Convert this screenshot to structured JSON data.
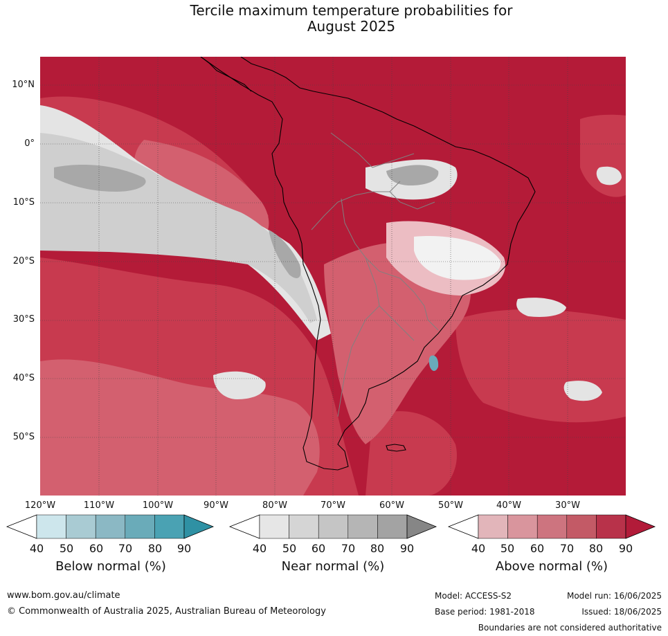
{
  "title": {
    "line1": "Tercile maximum temperature probabilities for",
    "line2": "August 2025"
  },
  "map": {
    "lat_labels": [
      "10°N",
      "0°",
      "10°S",
      "20°S",
      "30°S",
      "40°S",
      "50°S"
    ],
    "lon_labels": [
      "120°W",
      "110°W",
      "100°W",
      "90°W",
      "80°W",
      "70°W",
      "60°W",
      "50°W",
      "40°W",
      "30°W"
    ],
    "colors": {
      "ocean_above_90": "#b41b38",
      "ocean_above_80": "#c83a4f",
      "above_70": "#d3606f",
      "above_60": "#df8d98",
      "above_50": "#ecbdc3",
      "near_50": "#e4e4e4",
      "near_60": "#cfcfcf",
      "near_70": "#a8a8a8",
      "coast": "#000000",
      "border": "#808080"
    }
  },
  "legend": {
    "below": {
      "title": "Below normal (%)",
      "ticks": [
        "40",
        "50",
        "60",
        "70",
        "80",
        "90"
      ],
      "colors": [
        "#cde6ec",
        "#a9cbd3",
        "#8bb8c4",
        "#6aabb9",
        "#4aa2b3",
        "#2f91a4"
      ]
    },
    "near": {
      "title": "Near normal (%)",
      "ticks": [
        "40",
        "50",
        "60",
        "70",
        "80",
        "90"
      ],
      "colors": [
        "#e6e6e6",
        "#d5d5d5",
        "#c5c5c5",
        "#b5b5b5",
        "#a3a3a3",
        "#868686"
      ]
    },
    "above": {
      "title": "Above normal (%)",
      "ticks": [
        "40",
        "50",
        "60",
        "70",
        "80",
        "90"
      ],
      "colors": [
        "#e2b5ba",
        "#d9959d",
        "#cd747f",
        "#c35a66",
        "#b8324a",
        "#b21b39"
      ]
    }
  },
  "footer": {
    "website": "www.bom.gov.au/climate",
    "copyright": "© Commonwealth of Australia 2025, Australian Bureau of Meteorology",
    "model": "Model: ACCESS-S2",
    "base_period": "Base period: 1981-2018",
    "model_run": "Model run: 16/06/2025",
    "issued": "Issued: 18/06/2025",
    "disclaimer": "Boundaries are not considered authoritative"
  }
}
